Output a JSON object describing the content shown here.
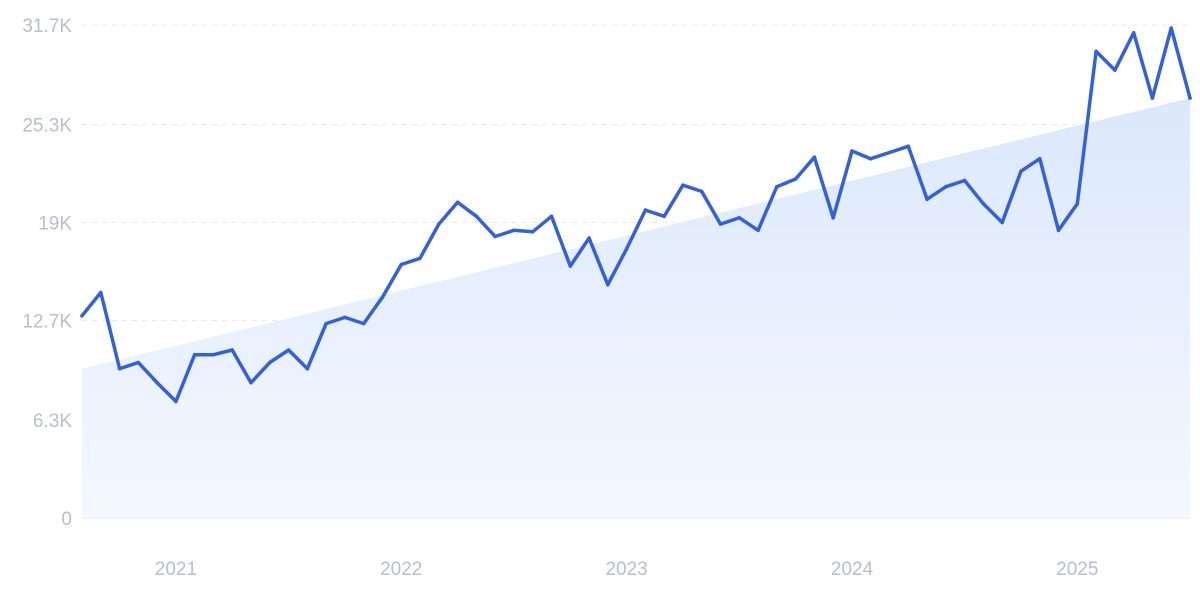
{
  "colors": {
    "line": "#3561d8",
    "trend_fill_top": "#dbe8fb",
    "trend_fill_bottom": "#f4f8fe"
  },
  "chart_data": {
    "type": "line",
    "title": "",
    "xlabel": "",
    "ylabel": "",
    "ylim": [
      0,
      31700
    ],
    "y_ticks": [
      0,
      6300,
      12700,
      19000,
      25300,
      31700
    ],
    "y_tick_labels": [
      "0",
      "6.3K",
      "12.7K",
      "19K",
      "25.3K",
      "31.7K"
    ],
    "x_tick_labels": [
      "2021",
      "2022",
      "2023",
      "2024",
      "2025"
    ],
    "x_tick_dates": [
      "2021-01",
      "2022-01",
      "2023-01",
      "2024-01",
      "2025-01"
    ],
    "x_range": [
      "2020-08",
      "2025-07"
    ],
    "grid": "horizontal dashed",
    "legend": "none",
    "series": [
      {
        "x": [
          "2020-08",
          "2020-09",
          "2020-10",
          "2020-11",
          "2020-12",
          "2021-01",
          "2021-02",
          "2021-03",
          "2021-04",
          "2021-05",
          "2021-06",
          "2021-07",
          "2021-08",
          "2021-09",
          "2021-10",
          "2021-11",
          "2021-12",
          "2022-01",
          "2022-02",
          "2022-03",
          "2022-04",
          "2022-05",
          "2022-06",
          "2022-07",
          "2022-08",
          "2022-09",
          "2022-10",
          "2022-11",
          "2022-12",
          "2023-01",
          "2023-02",
          "2023-03",
          "2023-04",
          "2023-05",
          "2023-06",
          "2023-07",
          "2023-08",
          "2023-09",
          "2023-10",
          "2023-11",
          "2023-12",
          "2024-01",
          "2024-02",
          "2024-03",
          "2024-04",
          "2024-05",
          "2024-06",
          "2024-07",
          "2024-08",
          "2024-09",
          "2024-10",
          "2024-11",
          "2024-12",
          "2025-01",
          "2025-02",
          "2025-03",
          "2025-04",
          "2025-05",
          "2025-06",
          "2025-07"
        ],
        "values": [
          13000,
          14500,
          9600,
          10000,
          8700,
          7500,
          10500,
          10500,
          10800,
          8700,
          10000,
          10800,
          9600,
          12500,
          12900,
          12500,
          14200,
          16300,
          16700,
          18900,
          20300,
          19400,
          18100,
          18500,
          18400,
          19400,
          16200,
          18000,
          15000,
          17300,
          19800,
          19400,
          21400,
          21000,
          18900,
          19300,
          18500,
          21300,
          21800,
          23200,
          19300,
          23600,
          23100,
          23500,
          23900,
          20500,
          21300,
          21700,
          20200,
          19000,
          22300,
          23100,
          18500,
          20200,
          30000,
          28800,
          31200,
          27000,
          31500,
          27000
        ]
      }
    ],
    "trend": {
      "type": "area",
      "start": 9600,
      "end": 27000
    }
  }
}
